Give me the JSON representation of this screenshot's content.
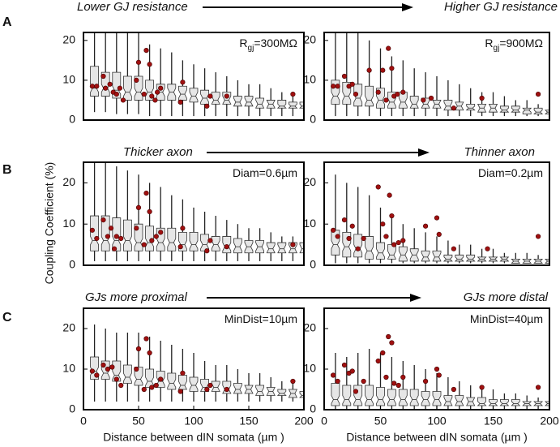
{
  "ylabel": "Coupling Coefficient (%)",
  "rows": [
    {
      "label": "A",
      "left": "Lower GJ resistance",
      "right": "Higher GJ resistance"
    },
    {
      "label": "B",
      "left": "Thicker axon",
      "right": "Thinner axon"
    },
    {
      "label": "C",
      "left": "GJs more proximal",
      "right": "GJs more distal"
    }
  ],
  "chart_data": [
    {
      "type": "box",
      "annotation": [
        "R",
        "gj",
        "=300MΩ"
      ],
      "box_color": "#e6e6e6",
      "point_color": "#a01010",
      "xlim": [
        0,
        200
      ],
      "ylim": [
        0,
        22
      ],
      "yticks": [
        0,
        10,
        20
      ],
      "x": [
        10,
        20,
        30,
        40,
        50,
        60,
        70,
        80,
        90,
        100,
        110,
        120,
        130,
        140,
        150,
        160,
        170,
        180,
        190,
        200
      ],
      "q1": [
        6,
        6,
        5.5,
        5,
        5,
        5,
        5,
        5,
        5,
        4.5,
        4,
        4,
        4,
        3.5,
        3.5,
        3,
        3,
        3,
        3,
        3
      ],
      "median": [
        8,
        8,
        7.5,
        7,
        7,
        7,
        7,
        7,
        6.5,
        6,
        5.5,
        5,
        5,
        4.5,
        4.5,
        4,
        4,
        3.5,
        3.5,
        3.5
      ],
      "q3": [
        13.5,
        12,
        12,
        11,
        11,
        10,
        9,
        9,
        8.5,
        8,
        7.5,
        7,
        7,
        6,
        6,
        5.5,
        5,
        5,
        4.5,
        4.5
      ],
      "whislo": [
        2,
        2,
        1.5,
        1.5,
        1.5,
        1,
        1,
        1,
        1,
        1,
        1,
        1,
        1,
        1,
        1,
        1,
        1,
        1,
        1,
        1
      ],
      "whishi": [
        25,
        23,
        23,
        22,
        22,
        19,
        18,
        17,
        15,
        14,
        13,
        12,
        11,
        10,
        9,
        9,
        8,
        7,
        6,
        6
      ],
      "points": {
        "x": [
          8,
          12,
          18,
          20,
          24,
          27,
          30,
          33,
          36,
          48,
          50,
          55,
          57,
          60,
          62,
          65,
          67,
          70,
          88,
          90,
          112,
          115,
          130,
          190
        ],
        "y": [
          8.5,
          8.5,
          11,
          8,
          9,
          7,
          6.5,
          8,
          5,
          10,
          14.5,
          6.5,
          17.5,
          14,
          6,
          5,
          7,
          8,
          4.5,
          9.5,
          3.5,
          6,
          6,
          6.5
        ]
      }
    },
    {
      "type": "box",
      "annotation": [
        "R",
        "gj",
        "=900MΩ"
      ],
      "box_color": "#e6e6e6",
      "point_color": "#a01010",
      "xlim": [
        0,
        200
      ],
      "ylim": [
        0,
        22
      ],
      "yticks": [
        0,
        10,
        20
      ],
      "x": [
        10,
        20,
        30,
        40,
        50,
        60,
        70,
        80,
        90,
        100,
        110,
        120,
        130,
        140,
        150,
        160,
        170,
        180,
        190,
        200
      ],
      "q1": [
        4,
        4,
        3.5,
        3.5,
        3,
        3,
        3,
        3,
        3,
        3,
        2.5,
        2.5,
        2.5,
        2,
        2,
        2,
        2,
        1.5,
        1.5,
        1.5
      ],
      "median": [
        6,
        6,
        5.5,
        5,
        5,
        4.5,
        4.5,
        4,
        4,
        4,
        3.5,
        3.5,
        3,
        3,
        3,
        2.5,
        2.5,
        2.5,
        2,
        2
      ],
      "q3": [
        10,
        9.5,
        9,
        8.5,
        8,
        7,
        7,
        6,
        5.5,
        5,
        5,
        4.5,
        4,
        4,
        4,
        3.5,
        3.5,
        3,
        3,
        2.5
      ],
      "whislo": [
        1,
        1,
        1,
        1,
        1,
        1,
        1,
        1,
        1,
        1,
        1,
        1,
        1,
        1,
        1,
        1,
        1,
        1,
        1,
        1
      ],
      "whishi": [
        24,
        22,
        22,
        20,
        18,
        16,
        15,
        13,
        12,
        11,
        10,
        9,
        8,
        7,
        7,
        6,
        5,
        5,
        4,
        4
      ],
      "points": {
        "x": [
          8,
          12,
          18,
          22,
          25,
          28,
          40,
          48,
          52,
          55,
          57,
          60,
          62,
          65,
          70,
          88,
          95,
          115,
          140,
          190
        ],
        "y": [
          8.5,
          8.5,
          11,
          8.5,
          9,
          6.5,
          12.5,
          7,
          12.5,
          5,
          18,
          13,
          6,
          6.5,
          7,
          5,
          5.5,
          3,
          5.5,
          6.5
        ]
      }
    },
    {
      "type": "box",
      "annotation": [
        "Diam=0.6µm"
      ],
      "box_color": "#e6e6e6",
      "point_color": "#a01010",
      "xlim": [
        0,
        200
      ],
      "ylim": [
        0,
        25
      ],
      "yticks": [
        0,
        10,
        20
      ],
      "x": [
        10,
        20,
        30,
        40,
        50,
        60,
        70,
        80,
        90,
        100,
        110,
        120,
        130,
        140,
        150,
        160,
        170,
        180,
        190,
        200
      ],
      "q1": [
        3.5,
        3.5,
        3.5,
        3.5,
        3.5,
        3.5,
        3.5,
        3.5,
        3.5,
        3.5,
        3.5,
        3.5,
        3,
        3,
        3,
        3,
        3,
        3,
        3,
        3
      ],
      "median": [
        6,
        6,
        6,
        6,
        5.5,
        5.5,
        5.5,
        5.5,
        5,
        5,
        5,
        5,
        4.5,
        4.5,
        4.5,
        4.5,
        4,
        4,
        4,
        4
      ],
      "q3": [
        12,
        12,
        11.5,
        11,
        10,
        9.5,
        9,
        9,
        8,
        8,
        7.5,
        7,
        7,
        6.5,
        6,
        6,
        5.5,
        5.5,
        5.5,
        5.5
      ],
      "whislo": [
        1,
        1,
        1,
        1,
        1,
        1,
        1,
        1,
        1,
        1,
        1,
        1,
        1,
        1,
        1,
        1,
        1,
        1,
        1,
        1
      ],
      "whishi": [
        25,
        25,
        24,
        23,
        22,
        20,
        19,
        17,
        16,
        14,
        13,
        12,
        11,
        10,
        9,
        9,
        8,
        7,
        7,
        7
      ],
      "points": {
        "x": [
          8,
          12,
          18,
          22,
          25,
          28,
          30,
          34,
          48,
          50,
          55,
          57,
          60,
          62,
          66,
          70,
          88,
          90,
          112,
          115,
          130,
          190
        ],
        "y": [
          8.5,
          6.5,
          11,
          7,
          9,
          4,
          7,
          6.5,
          9,
          14,
          5,
          17.5,
          13,
          6,
          7,
          8,
          4.5,
          9,
          3.5,
          6,
          4.5,
          5
        ]
      }
    },
    {
      "type": "box",
      "annotation": [
        "Diam=0.2µm"
      ],
      "box_color": "#e6e6e6",
      "point_color": "#a01010",
      "xlim": [
        0,
        200
      ],
      "ylim": [
        0,
        25
      ],
      "yticks": [
        0,
        10,
        20
      ],
      "x": [
        10,
        20,
        30,
        40,
        50,
        60,
        70,
        80,
        90,
        100,
        110,
        120,
        130,
        140,
        150,
        160,
        170,
        180,
        190,
        200
      ],
      "q1": [
        2.5,
        2,
        2,
        1.5,
        1.5,
        1.5,
        1,
        1,
        1,
        1,
        1,
        1,
        1,
        1,
        1,
        1,
        0.5,
        0.5,
        0.5,
        0.5
      ],
      "median": [
        5,
        4.5,
        4,
        3.5,
        3,
        2.5,
        2.5,
        2.5,
        2,
        2,
        1.5,
        1.5,
        1.5,
        1.5,
        1.5,
        1.5,
        1,
        1,
        1,
        1
      ],
      "q3": [
        8.5,
        8,
        7.5,
        7,
        5.5,
        5,
        4.5,
        4,
        3.5,
        3.5,
        2.5,
        2.5,
        2.5,
        2,
        2,
        2,
        1.5,
        1.5,
        1.5,
        1.5
      ],
      "whislo": [
        0.5,
        0.5,
        0.5,
        0.5,
        0.5,
        0.5,
        0.5,
        0.5,
        0.5,
        0.5,
        0.5,
        0.5,
        0.5,
        0.5,
        0.5,
        0.5,
        0.5,
        0.5,
        0.5,
        0.5
      ],
      "whishi": [
        22,
        20,
        19,
        17,
        14,
        12,
        10,
        9,
        8,
        7,
        6,
        5,
        5,
        4,
        4,
        3,
        3,
        3,
        2.5,
        2.5
      ],
      "points": {
        "x": [
          8,
          12,
          18,
          22,
          25,
          30,
          35,
          48,
          52,
          55,
          58,
          60,
          62,
          66,
          70,
          90,
          100,
          102,
          115,
          145,
          190
        ],
        "y": [
          8.5,
          7,
          11,
          6.5,
          9.5,
          4,
          6.5,
          19,
          10,
          7,
          17,
          12,
          5,
          5.5,
          6,
          9.5,
          11.5,
          7.5,
          4,
          4,
          7
        ]
      }
    },
    {
      "type": "box",
      "annotation": [
        "MinDist=10µm"
      ],
      "box_color": "#e6e6e6",
      "point_color": "#a01010",
      "xlim": [
        0,
        200
      ],
      "ylim": [
        0,
        25
      ],
      "yticks": [
        0,
        10,
        20
      ],
      "xticks": [
        0,
        50,
        100,
        150,
        200
      ],
      "xlabel": "Distance between dIN somata (µm )",
      "x": [
        10,
        20,
        30,
        40,
        50,
        60,
        70,
        80,
        90,
        100,
        110,
        120,
        130,
        140,
        150,
        160,
        170,
        180,
        190,
        200
      ],
      "q1": [
        7.5,
        7.5,
        7,
        6.5,
        6,
        5.5,
        5.5,
        5,
        5,
        4.5,
        4.5,
        4.5,
        4,
        4,
        4,
        3.5,
        3.5,
        3.5,
        3,
        3
      ],
      "median": [
        9.5,
        9,
        8.5,
        8,
        7.5,
        7,
        7,
        6.5,
        6,
        6,
        5.5,
        5.5,
        5,
        5,
        5,
        4.5,
        4.5,
        4,
        4,
        3.5
      ],
      "q3": [
        13,
        12,
        12,
        11,
        10.5,
        10,
        9.5,
        9,
        8.5,
        8,
        7.5,
        7,
        7,
        6.5,
        6,
        6,
        5.5,
        5,
        5,
        4.5
      ],
      "whislo": [
        2,
        2,
        2,
        2,
        2,
        2,
        2,
        2,
        2,
        2,
        2,
        2,
        2,
        2,
        2,
        2,
        2,
        2,
        2,
        2
      ],
      "whishi": [
        21,
        20,
        19,
        19,
        19,
        18,
        17,
        16,
        15,
        14,
        12,
        11,
        11,
        10,
        9,
        9,
        8,
        7,
        7,
        6
      ],
      "points": {
        "x": [
          8,
          12,
          18,
          22,
          26,
          30,
          34,
          48,
          50,
          55,
          57,
          60,
          62,
          66,
          70,
          88,
          90,
          112,
          115,
          130,
          190
        ],
        "y": [
          9.5,
          8.5,
          11,
          10,
          10.5,
          7.5,
          6,
          10,
          15,
          5,
          17.5,
          14,
          5.5,
          6,
          7.5,
          4.5,
          9,
          5,
          6,
          5,
          7
        ]
      }
    },
    {
      "type": "box",
      "annotation": [
        "MinDist=40µm"
      ],
      "box_color": "#e6e6e6",
      "point_color": "#a01010",
      "xlim": [
        0,
        200
      ],
      "ylim": [
        0,
        25
      ],
      "yticks": [
        0,
        10,
        20
      ],
      "xticks": [
        0,
        50,
        100,
        150,
        200
      ],
      "xlabel": "Distance between dIN somata (µm )",
      "x": [
        10,
        20,
        30,
        40,
        50,
        60,
        70,
        80,
        90,
        100,
        110,
        120,
        130,
        140,
        150,
        160,
        170,
        180,
        190,
        200
      ],
      "q1": [
        1,
        1,
        1,
        1,
        1,
        1,
        1,
        1,
        1,
        1,
        1,
        1,
        1,
        1,
        1,
        1,
        1,
        1,
        1,
        1
      ],
      "median": [
        2.5,
        2.5,
        2.5,
        2.5,
        2.5,
        2.5,
        2.5,
        2.5,
        2.5,
        2.5,
        2,
        2,
        2,
        1.5,
        1.5,
        1.5,
        1.5,
        1.5,
        1.5,
        1.5
      ],
      "q3": [
        6.5,
        6,
        6,
        6,
        5.5,
        5,
        5,
        5,
        4.5,
        4.5,
        3.5,
        3.5,
        3,
        3,
        2.5,
        2.5,
        2.5,
        2,
        2,
        2
      ],
      "whislo": [
        0,
        0,
        0,
        0,
        0,
        0,
        0,
        0,
        0,
        0,
        0,
        0,
        0,
        0,
        0,
        0,
        0,
        0,
        0,
        0
      ],
      "whishi": [
        14,
        13,
        14,
        15,
        14,
        13,
        12,
        11,
        10,
        9,
        8,
        7,
        6,
        5,
        5,
        4,
        4,
        3.5,
        3,
        3
      ],
      "points": {
        "x": [
          8,
          12,
          18,
          22,
          25,
          28,
          35,
          48,
          52,
          55,
          57,
          60,
          62,
          66,
          70,
          90,
          100,
          102,
          115,
          140,
          190
        ],
        "y": [
          8.5,
          7,
          11,
          9,
          9.5,
          4.5,
          7,
          12,
          14,
          8,
          18,
          16.5,
          6.5,
          6,
          8,
          7,
          10,
          8.5,
          5,
          5.5,
          5.5
        ]
      }
    }
  ]
}
